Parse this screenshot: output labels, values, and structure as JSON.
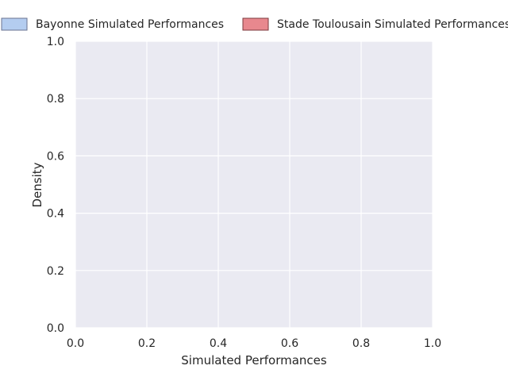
{
  "chart_data": {
    "type": "area",
    "title": "",
    "xlabel": "Simulated Performances",
    "ylabel": "Density",
    "xlim": [
      0.0,
      1.0
    ],
    "ylim": [
      0.0,
      1.0
    ],
    "xticks": [
      "0.0",
      "0.2",
      "0.4",
      "0.6",
      "0.8",
      "1.0"
    ],
    "yticks": [
      "0.0",
      "0.2",
      "0.4",
      "0.6",
      "0.8",
      "1.0"
    ],
    "grid": true,
    "legend_position": "top",
    "series": [
      {
        "name": "Bayonne Simulated Performances",
        "color": "#b4cdf0",
        "edge_color": "#6a7390",
        "values": []
      },
      {
        "name": "Stade Toulousain Simulated Performances",
        "color": "#e8888e",
        "edge_color": "#7c3a3e",
        "values": []
      }
    ],
    "background_color": "#eaeaf2",
    "grid_color": "#ffffff"
  }
}
